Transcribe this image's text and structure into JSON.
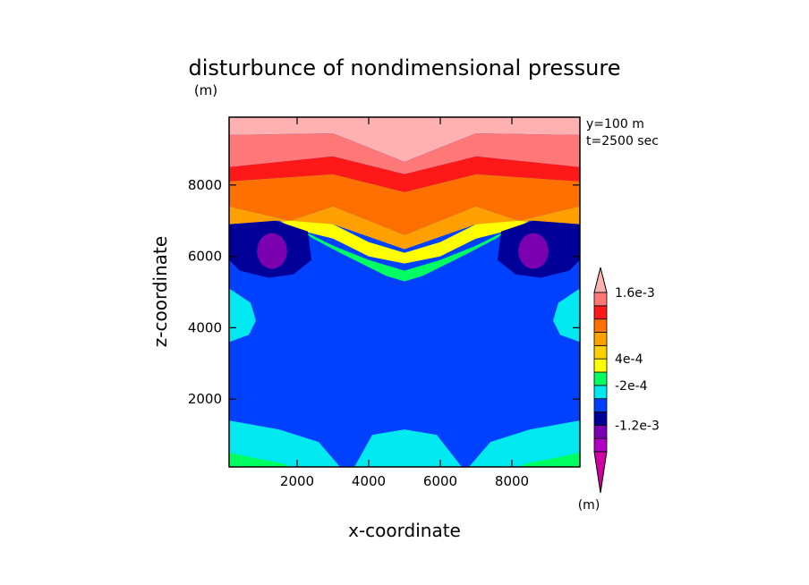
{
  "chart_data": {
    "type": "heatmap",
    "title": "disturbunce of nondimensional pressure",
    "x_unit": "(m)",
    "xlabel": "x-coordinate",
    "ylabel": "z-coordinate",
    "xlim": [
      100,
      9900
    ],
    "ylim": [
      100,
      9900
    ],
    "x_ticks": [
      {
        "value": 2000,
        "label": "2000"
      },
      {
        "value": 4000,
        "label": "4000"
      },
      {
        "value": 6000,
        "label": "6000"
      },
      {
        "value": 8000,
        "label": "8000"
      }
    ],
    "y_ticks": [
      {
        "value": 2000,
        "label": "2000"
      },
      {
        "value": 4000,
        "label": "4000"
      },
      {
        "value": 6000,
        "label": "6000"
      },
      {
        "value": 8000,
        "label": "8000"
      }
    ],
    "annotations": [
      "y=100 m",
      "t=2500 sec"
    ],
    "colorbar": {
      "unit": "(m)",
      "levels": [
        {
          "color": "#d000a0"
        },
        {
          "color": "#b000c8"
        },
        {
          "color": "#7a00b0"
        },
        {
          "color": "#000099"
        },
        {
          "color": "#0040ff",
          "label": "-1.2e-3"
        },
        {
          "color": "#00e8f0"
        },
        {
          "color": "#00ff60",
          "label": "-2e-4"
        },
        {
          "color": "#ffff00"
        },
        {
          "color": "#ffd000",
          "label": "4e-4"
        },
        {
          "color": "#ffa000"
        },
        {
          "color": "#ff7000"
        },
        {
          "color": "#ff1818"
        },
        {
          "color": "#ff7878",
          "label": "1.6e-3"
        },
        {
          "color": "#ffb0b0"
        }
      ],
      "label_positions": [
        {
          "between": [
            12,
            13
          ],
          "label": "1.6e-3"
        },
        {
          "between": [
            7,
            8
          ],
          "label": "4e-4"
        },
        {
          "between": [
            5,
            6
          ],
          "label": "-2e-4"
        },
        {
          "between": [
            2,
            3
          ],
          "label": "-1.2e-3"
        }
      ]
    },
    "field_regions": [
      {
        "name": "pink-top",
        "color": "#ffb0b0",
        "outline": [
          [
            100,
            9900
          ],
          [
            9900,
            9900
          ],
          [
            9900,
            9400
          ],
          [
            7000,
            9450
          ],
          [
            5000,
            8650
          ],
          [
            3000,
            9450
          ],
          [
            100,
            9400
          ]
        ]
      },
      {
        "name": "salmon",
        "color": "#ff7878",
        "outline": [
          [
            100,
            9400
          ],
          [
            3000,
            9450
          ],
          [
            5000,
            8650
          ],
          [
            7000,
            9450
          ],
          [
            9900,
            9400
          ],
          [
            9900,
            8500
          ],
          [
            7000,
            8800
          ],
          [
            5000,
            8300
          ],
          [
            3000,
            8800
          ],
          [
            100,
            8500
          ]
        ]
      },
      {
        "name": "red",
        "color": "#ff1818",
        "outline": [
          [
            100,
            8500
          ],
          [
            3000,
            8800
          ],
          [
            5000,
            8300
          ],
          [
            7000,
            8800
          ],
          [
            9900,
            8500
          ],
          [
            9900,
            8100
          ],
          [
            7000,
            8300
          ],
          [
            5000,
            7800
          ],
          [
            3000,
            8300
          ],
          [
            100,
            8100
          ]
        ]
      },
      {
        "name": "dark-orange",
        "color": "#ff7000",
        "outline": [
          [
            100,
            8100
          ],
          [
            3000,
            8300
          ],
          [
            5000,
            7800
          ],
          [
            7000,
            8300
          ],
          [
            9900,
            8100
          ],
          [
            9900,
            7400
          ],
          [
            8200,
            7000
          ],
          [
            7000,
            7400
          ],
          [
            5000,
            6600
          ],
          [
            3000,
            7400
          ],
          [
            1800,
            7000
          ],
          [
            100,
            7400
          ]
        ]
      },
      {
        "name": "orange",
        "color": "#ffa000",
        "outline": [
          [
            100,
            7400
          ],
          [
            1800,
            7000
          ],
          [
            3000,
            7400
          ],
          [
            5000,
            6600
          ],
          [
            7000,
            7400
          ],
          [
            8200,
            7000
          ],
          [
            9900,
            7400
          ],
          [
            9900,
            6900
          ],
          [
            8200,
            6700
          ],
          [
            7000,
            6900
          ],
          [
            5000,
            6200
          ],
          [
            3000,
            6900
          ],
          [
            1800,
            6700
          ],
          [
            100,
            6900
          ]
        ]
      },
      {
        "name": "yellow",
        "color": "#ffff00",
        "outline": [
          [
            1000,
            6900
          ],
          [
            1800,
            7000
          ],
          [
            3000,
            6900
          ],
          [
            4000,
            6400
          ],
          [
            5000,
            6100
          ],
          [
            6000,
            6400
          ],
          [
            7000,
            6900
          ],
          [
            8200,
            7000
          ],
          [
            9000,
            6900
          ],
          [
            8200,
            6800
          ],
          [
            7000,
            6500
          ],
          [
            6000,
            6000
          ],
          [
            5000,
            5800
          ],
          [
            4000,
            6000
          ],
          [
            3000,
            6500
          ],
          [
            1800,
            6800
          ]
        ]
      },
      {
        "name": "green",
        "color": "#00ff60",
        "outline": [
          [
            2200,
            6700
          ],
          [
            3000,
            6300
          ],
          [
            4000,
            5900
          ],
          [
            5000,
            5600
          ],
          [
            6000,
            5900
          ],
          [
            7000,
            6300
          ],
          [
            7800,
            6700
          ],
          [
            7000,
            6000
          ],
          [
            6000,
            5600
          ],
          [
            5000,
            5300
          ],
          [
            4000,
            5600
          ],
          [
            3000,
            6000
          ]
        ]
      },
      {
        "name": "blue-main",
        "color": "#0040ff",
        "outline": [
          [
            100,
            6900
          ],
          [
            1500,
            7000
          ],
          [
            3200,
            6100
          ],
          [
            4200,
            5600
          ],
          [
            5000,
            5200
          ],
          [
            5800,
            5600
          ],
          [
            6800,
            6100
          ],
          [
            8500,
            7000
          ],
          [
            9900,
            6900
          ],
          [
            9900,
            100
          ],
          [
            100,
            100
          ]
        ]
      },
      {
        "name": "navy-left",
        "color": "#000099",
        "outline": [
          [
            100,
            6900
          ],
          [
            1400,
            7000
          ],
          [
            2300,
            6700
          ],
          [
            2400,
            5900
          ],
          [
            1900,
            5500
          ],
          [
            1200,
            5400
          ],
          [
            400,
            5600
          ],
          [
            100,
            5900
          ]
        ]
      },
      {
        "name": "navy-right",
        "color": "#000099",
        "outline": [
          [
            9900,
            6900
          ],
          [
            8600,
            7000
          ],
          [
            7700,
            6700
          ],
          [
            7600,
            5900
          ],
          [
            8100,
            5500
          ],
          [
            8800,
            5400
          ],
          [
            9600,
            5600
          ],
          [
            9900,
            5900
          ]
        ]
      },
      {
        "name": "purple-left",
        "color": "#7a00b0",
        "ellipse": [
          1300,
          6150,
          420,
          500
        ]
      },
      {
        "name": "purple-right",
        "color": "#7a00b0",
        "ellipse": [
          8600,
          6150,
          420,
          500
        ]
      },
      {
        "name": "cyan-left",
        "color": "#00e8f0",
        "outline": [
          [
            100,
            5100
          ],
          [
            700,
            4700
          ],
          [
            850,
            4200
          ],
          [
            650,
            3800
          ],
          [
            100,
            3600
          ]
        ]
      },
      {
        "name": "cyan-right",
        "color": "#00e8f0",
        "outline": [
          [
            9900,
            5100
          ],
          [
            9300,
            4700
          ],
          [
            9150,
            4200
          ],
          [
            9350,
            3800
          ],
          [
            9900,
            3600
          ]
        ]
      },
      {
        "name": "cyan-bottom",
        "color": "#00e8f0",
        "outline": [
          [
            100,
            1400
          ],
          [
            1500,
            1150
          ],
          [
            2600,
            800
          ],
          [
            3200,
            100
          ],
          [
            100,
            100
          ]
        ]
      },
      {
        "name": "cyan-bottom-mid",
        "color": "#00e8f0",
        "outline": [
          [
            3600,
            100
          ],
          [
            4100,
            1000
          ],
          [
            5000,
            1150
          ],
          [
            5900,
            1000
          ],
          [
            6600,
            100
          ]
        ]
      },
      {
        "name": "cyan-bottom-right",
        "color": "#00e8f0",
        "outline": [
          [
            6800,
            100
          ],
          [
            7400,
            800
          ],
          [
            8500,
            1150
          ],
          [
            9900,
            1400
          ],
          [
            9900,
            100
          ]
        ]
      },
      {
        "name": "green-bottom-left",
        "color": "#00ff60",
        "outline": [
          [
            100,
            500
          ],
          [
            800,
            350
          ],
          [
            1600,
            200
          ],
          [
            1800,
            100
          ],
          [
            100,
            100
          ]
        ]
      },
      {
        "name": "green-bottom-right",
        "color": "#00ff60",
        "outline": [
          [
            9900,
            500
          ],
          [
            9200,
            350
          ],
          [
            8400,
            200
          ],
          [
            8200,
            100
          ],
          [
            9900,
            100
          ]
        ]
      }
    ]
  }
}
